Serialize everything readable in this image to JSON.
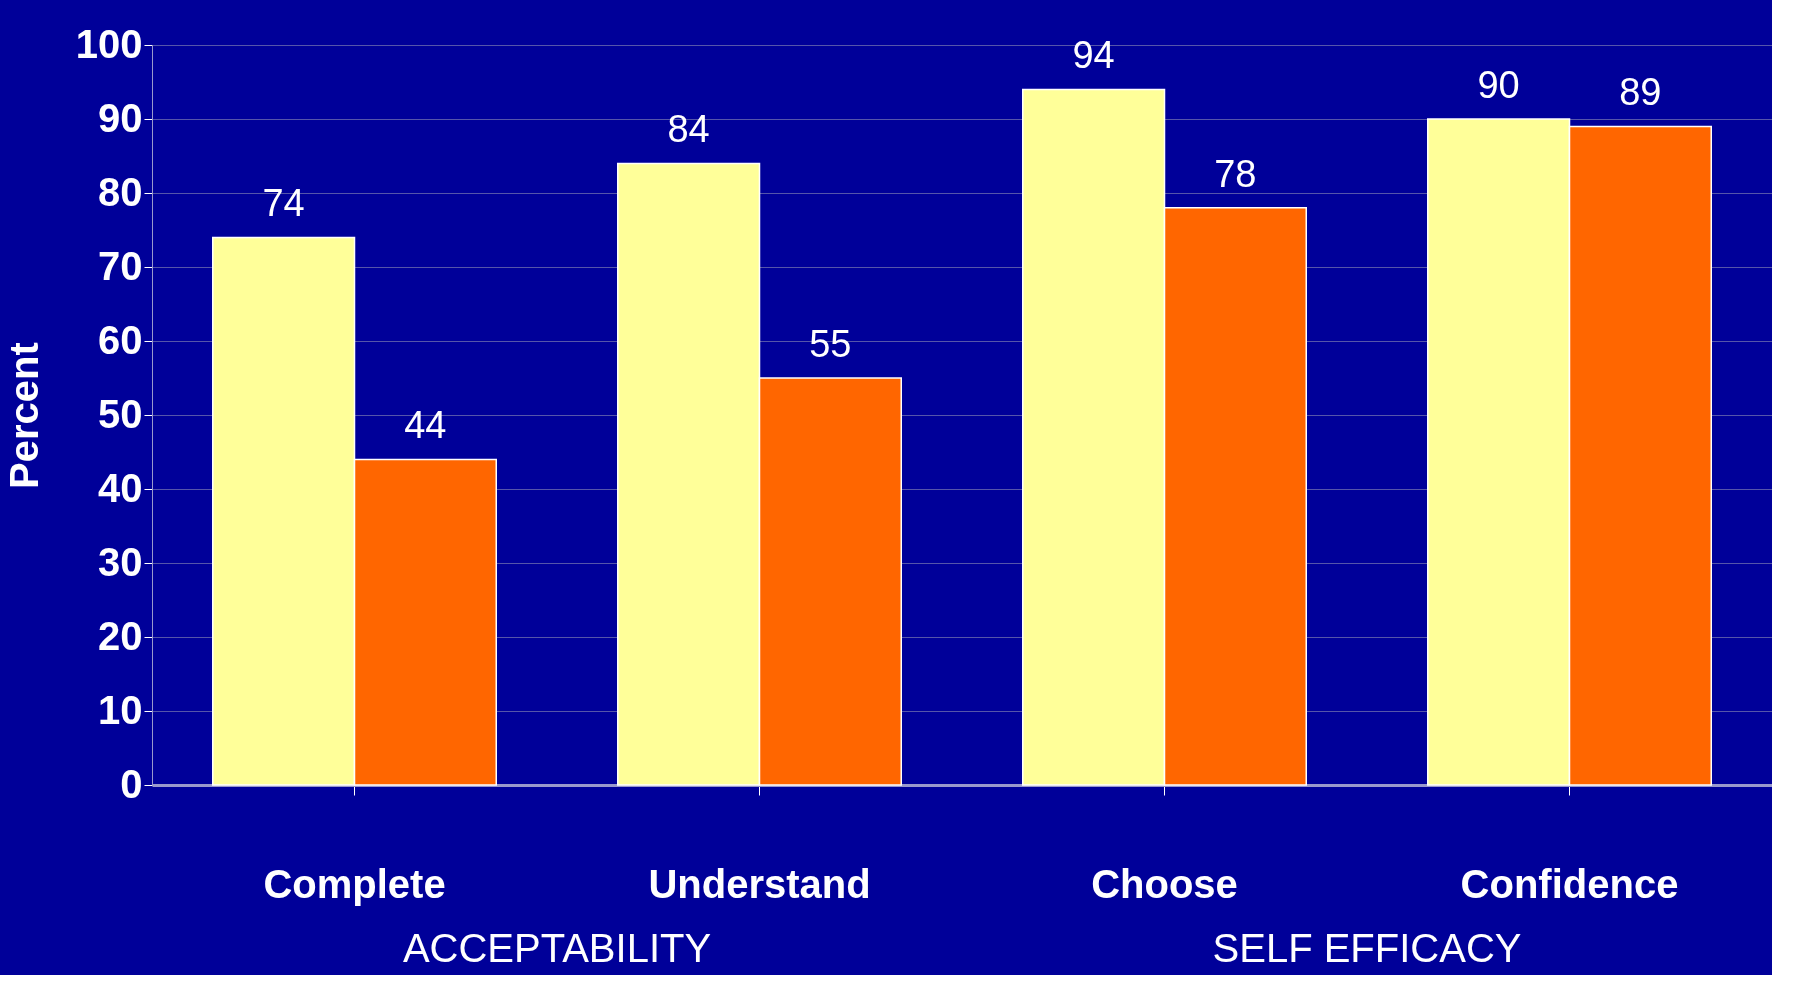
{
  "chart_data": {
    "type": "bar",
    "ylabel": "Percent",
    "categories": [
      "Complete",
      "Understand",
      "Choose",
      "Confidence"
    ],
    "series": [
      {
        "color": "#ffff99",
        "values": [
          74,
          84,
          94,
          90
        ]
      },
      {
        "color": "#ff6600",
        "values": [
          44,
          55,
          78,
          89
        ]
      }
    ],
    "ylim": [
      0,
      100
    ],
    "yticks": [
      0,
      10,
      20,
      30,
      40,
      50,
      60,
      70,
      80,
      90,
      100
    ],
    "grid": "y",
    "legend": false,
    "data_labels": true,
    "annotations": [
      "ACCEPTABILITY",
      "SELF EFFICACY"
    ]
  }
}
